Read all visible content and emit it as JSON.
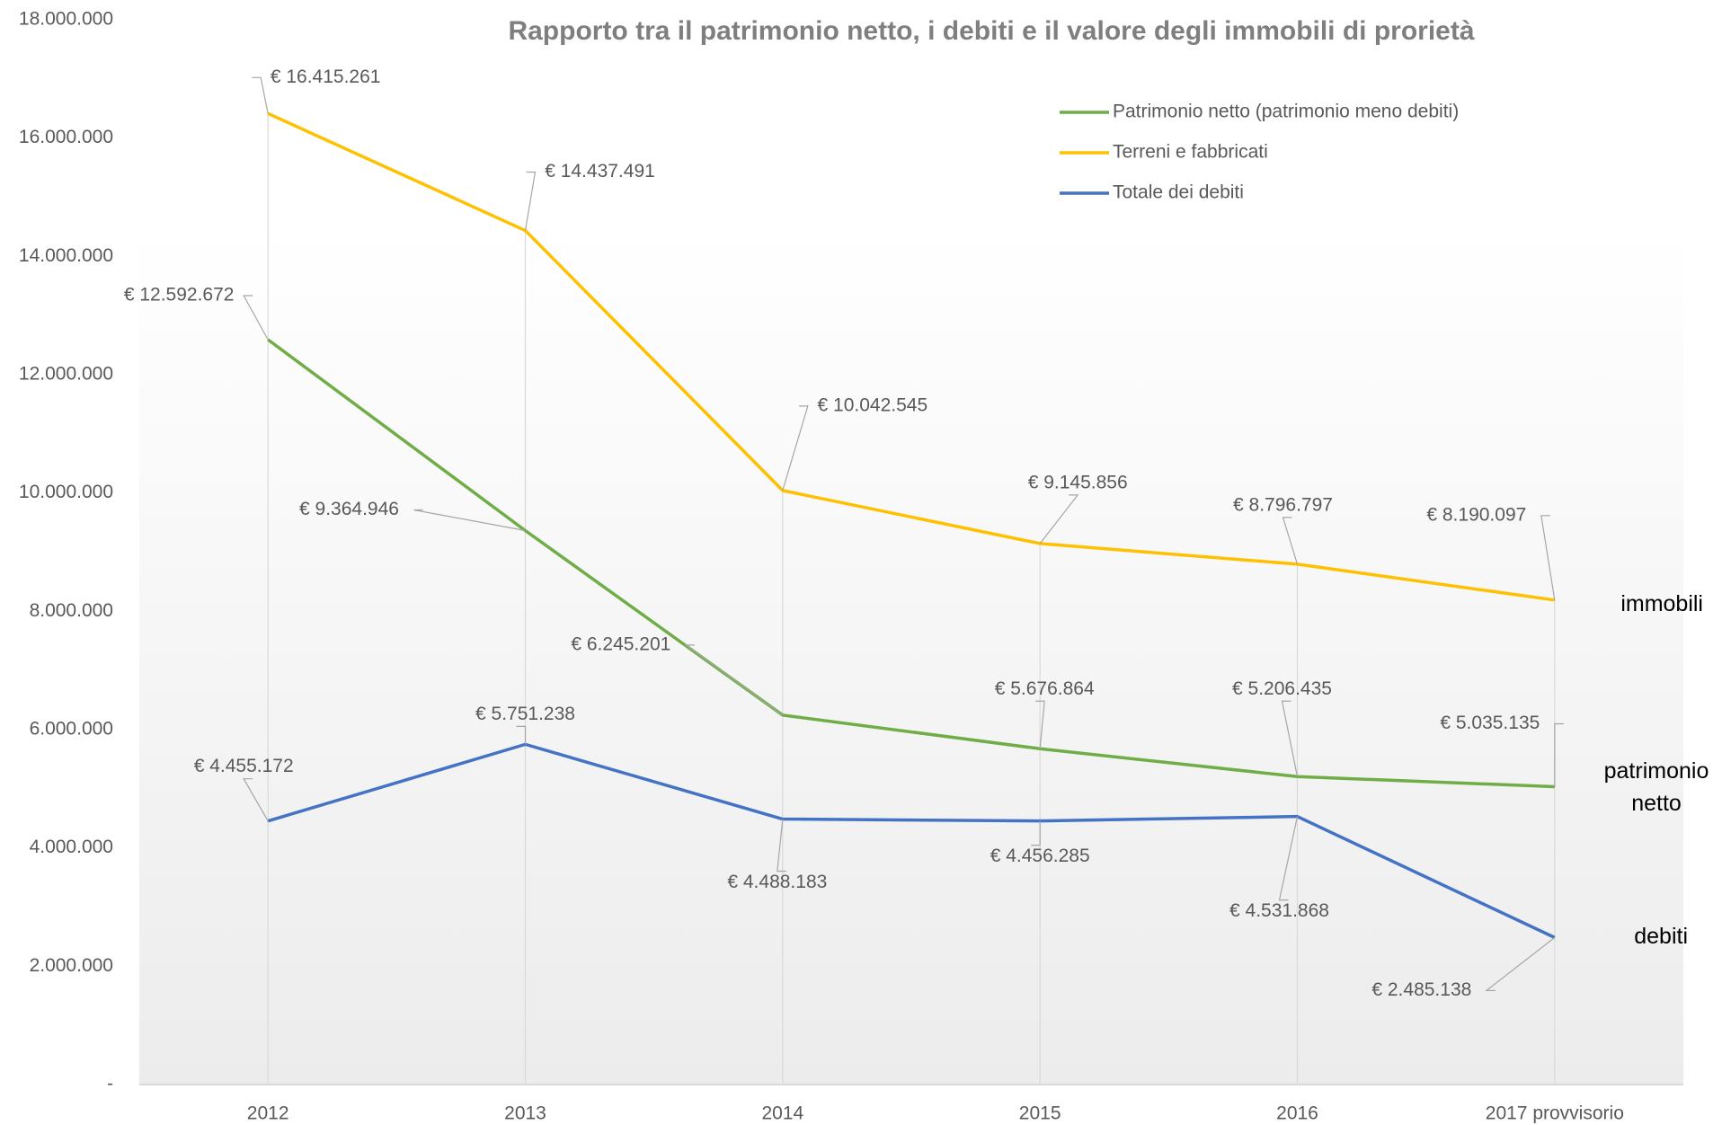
{
  "chart_data": {
    "type": "line",
    "title": "Rapporto tra il patrimonio netto, i debiti e il valore degli immobili di prorietà",
    "categories": [
      "2012",
      "2013",
      "2014",
      "2015",
      "2016",
      "2017 provvisorio"
    ],
    "series": [
      {
        "name": "Patrimonio netto (patrimonio meno debiti)",
        "color": "#70ad47",
        "values": [
          12592672,
          9364946,
          6245201,
          5676864,
          5206435,
          5035135
        ],
        "value_labels": [
          "€ 12.592.672",
          "€ 9.364.946",
          "€ 6.245.201",
          "€ 5.676.864",
          "€ 5.206.435",
          "€ 5.035.135"
        ]
      },
      {
        "name": "Terreni e fabbricati",
        "color": "#ffc000",
        "values": [
          16415261,
          14437491,
          10042545,
          9145856,
          8796797,
          8190097
        ],
        "value_labels": [
          "€ 16.415.261",
          "€ 14.437.491",
          "€ 10.042.545",
          "€ 9.145.856",
          "€ 8.796.797",
          "€ 8.190.097"
        ]
      },
      {
        "name": "Totale dei debiti",
        "color": "#4472c4",
        "values": [
          4455172,
          5751238,
          4488183,
          4456285,
          4531868,
          2485138
        ],
        "value_labels": [
          "€ 4.455.172",
          "€ 5.751.238",
          "€ 4.488.183",
          "€ 4.456.285",
          "€ 4.531.868",
          "€ 2.485.138"
        ]
      }
    ],
    "ylim": [
      0,
      18000000
    ],
    "yticks": [
      {
        "value": 0,
        "label": "-"
      },
      {
        "value": 2000000,
        "label": "2.000.000"
      },
      {
        "value": 4000000,
        "label": "4.000.000"
      },
      {
        "value": 6000000,
        "label": "6.000.000"
      },
      {
        "value": 8000000,
        "label": "8.000.000"
      },
      {
        "value": 10000000,
        "label": "10.000.000"
      },
      {
        "value": 12000000,
        "label": "12.000.000"
      },
      {
        "value": 14000000,
        "label": "14.000.000"
      },
      {
        "value": 16000000,
        "label": "16.000.000"
      },
      {
        "value": 18000000,
        "label": "18.000.000"
      }
    ],
    "legend": "top-right",
    "annotations": [
      "immobili",
      "patrimonio netto",
      "debiti"
    ]
  }
}
